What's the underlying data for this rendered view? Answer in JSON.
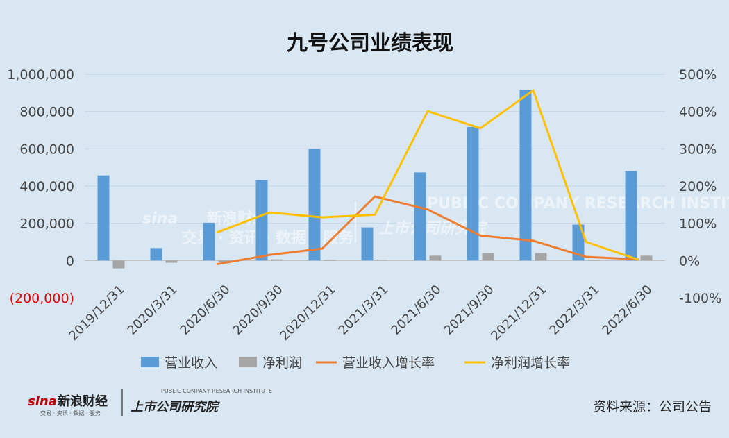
{
  "chart_data": {
    "type": "bar",
    "title": "九号公司业绩表现",
    "categories": [
      "2019/12/31",
      "2020/3/31",
      "2020/6/30",
      "2020/9/30",
      "2020/12/31",
      "2021/3/31",
      "2021/6/30",
      "2021/9/30",
      "2021/12/31",
      "2022/3/31",
      "2022/6/30"
    ],
    "left_axis": {
      "ylim": [
        -200000,
        1000000
      ],
      "ticks": [
        "1,000,000",
        "800,000",
        "600,000",
        "400,000",
        "200,000",
        "0",
        "(200,000)"
      ],
      "tick_values": [
        1000000,
        800000,
        600000,
        400000,
        200000,
        0,
        -200000
      ]
    },
    "right_axis": {
      "ylim": [
        -100,
        500
      ],
      "ticks": [
        "500%",
        "400%",
        "300%",
        "200%",
        "100%",
        "0%",
        "-100%"
      ],
      "tick_values": [
        500,
        400,
        300,
        200,
        100,
        0,
        -100
      ]
    },
    "series": [
      {
        "name": "营业收入",
        "type": "bar",
        "axis": "left",
        "color": "#5b9bd5",
        "values": [
          457000,
          67000,
          203000,
          432000,
          600000,
          178000,
          473000,
          717000,
          917000,
          193000,
          480000
        ]
      },
      {
        "name": "净利润",
        "type": "bar",
        "axis": "left",
        "color": "#a5a5a5",
        "values": [
          -42000,
          -12000,
          -8000,
          6000,
          3000,
          5000,
          26000,
          40000,
          40000,
          3000,
          26000
        ]
      },
      {
        "name": "营业收入增长率",
        "type": "line",
        "axis": "right",
        "color": "#ed7d31",
        "values": [
          null,
          null,
          -10,
          15,
          32,
          172,
          137,
          67,
          53,
          10,
          3
        ]
      },
      {
        "name": "净利润增长率",
        "type": "line",
        "axis": "right",
        "color": "#ffc000",
        "values": [
          null,
          null,
          75,
          129,
          116,
          123,
          401,
          355,
          457,
          50,
          2
        ]
      }
    ],
    "grid": true,
    "legend_position": "bottom"
  },
  "watermark": {
    "brand": "新浪财经",
    "brand_sub": "交易 · 资讯 · 数据 · 服务",
    "brand_logo": "sina",
    "institute": "上市公司研究院",
    "institute_en": "PUBLIC COMPANY RESEARCH INSTITUTE"
  },
  "source_text": "资料来源：公司公告"
}
